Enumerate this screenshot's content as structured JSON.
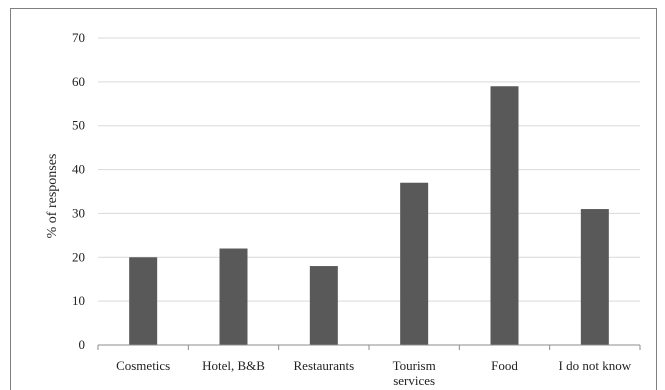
{
  "chart_data": {
    "type": "bar",
    "ylabel": "% of responses",
    "xlabel": "",
    "ylim": [
      0,
      70
    ],
    "yticks": [
      0,
      10,
      20,
      30,
      40,
      50,
      60,
      70
    ],
    "grid": true,
    "categories": [
      [
        "Cosmetics"
      ],
      [
        "Hotel, B&B"
      ],
      [
        "Restaurants"
      ],
      [
        "Tourism",
        "services"
      ],
      [
        "Food"
      ],
      [
        "I do not know"
      ]
    ],
    "values": [
      20,
      22,
      18,
      37,
      59,
      31
    ],
    "bar_color": "#595959",
    "grid_color": "#d9d9d9",
    "axis_color": "#8c8c8c"
  }
}
